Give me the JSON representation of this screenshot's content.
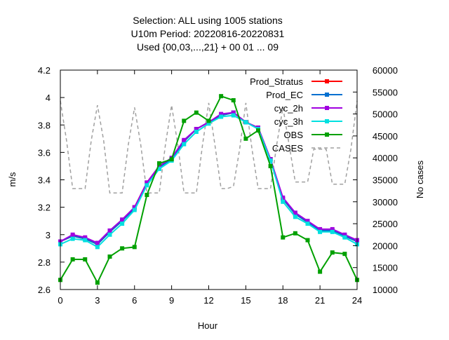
{
  "chart_data": {
    "type": "line",
    "title_lines": [
      "Selection: ALL using  1005 stations",
      "U10m   Period: 20220816-20220831",
      "Used {00,03,...,21} + 00 01 ... 09"
    ],
    "xlabel": "Hour",
    "ylabel": "m/s",
    "y2label": "No cases",
    "xlim": [
      0,
      24
    ],
    "ylim": [
      2.6,
      4.2
    ],
    "y2lim": [
      10000,
      60000
    ],
    "x_ticks": [
      0,
      3,
      6,
      9,
      12,
      15,
      18,
      21,
      24
    ],
    "y_ticks": [
      "2.6",
      "2.8",
      "3",
      "3.2",
      "3.4",
      "3.6",
      "3.8",
      "4",
      "4.2"
    ],
    "y_tick_values": [
      2.6,
      2.8,
      3.0,
      3.2,
      3.4,
      3.6,
      3.8,
      4.0,
      4.2
    ],
    "y2_ticks": [
      "10000",
      "15000",
      "20000",
      "25000",
      "30000",
      "35000",
      "40000",
      "45000",
      "50000",
      "55000",
      "60000"
    ],
    "y2_tick_values": [
      10000,
      15000,
      20000,
      25000,
      30000,
      35000,
      40000,
      45000,
      50000,
      55000,
      60000
    ],
    "grid": false,
    "legend_position": "top-right",
    "x": [
      0,
      1,
      2,
      3,
      4,
      5,
      6,
      7,
      8,
      9,
      10,
      11,
      12,
      13,
      14,
      15,
      16,
      17,
      18,
      19,
      20,
      21,
      22,
      23,
      24
    ],
    "series": [
      {
        "name": "Prod_Stratus",
        "color": "#ff0000",
        "axis": "y1",
        "values": [
          2.95,
          2.99,
          2.97,
          2.93,
          3.02,
          3.1,
          3.2,
          3.38,
          3.5,
          3.55,
          3.68,
          3.77,
          3.82,
          3.87,
          3.89,
          3.82,
          3.78,
          3.55,
          3.26,
          3.15,
          3.09,
          3.03,
          3.03,
          2.99,
          2.95
        ]
      },
      {
        "name": "Prod_EC",
        "color": "#0070d0",
        "axis": "y1",
        "values": [
          2.95,
          2.99,
          2.97,
          2.93,
          3.02,
          3.1,
          3.19,
          3.38,
          3.49,
          3.55,
          3.68,
          3.77,
          3.82,
          3.87,
          3.89,
          3.82,
          3.78,
          3.55,
          3.26,
          3.15,
          3.09,
          3.03,
          3.03,
          2.99,
          2.95
        ]
      },
      {
        "name": "cyc_2h",
        "color": "#a000e0",
        "axis": "y1",
        "values": [
          2.95,
          3.0,
          2.98,
          2.94,
          3.03,
          3.11,
          3.2,
          3.38,
          3.5,
          3.56,
          3.69,
          3.77,
          3.82,
          3.88,
          3.89,
          3.82,
          3.78,
          3.55,
          3.27,
          3.16,
          3.1,
          3.04,
          3.04,
          3.0,
          2.96
        ]
      },
      {
        "name": "cyc_3h",
        "color": "#00e0e0",
        "axis": "y1",
        "values": [
          2.93,
          2.97,
          2.96,
          2.91,
          3.0,
          3.08,
          3.18,
          3.36,
          3.48,
          3.54,
          3.66,
          3.75,
          3.81,
          3.86,
          3.87,
          3.82,
          3.77,
          3.54,
          3.24,
          3.13,
          3.08,
          3.02,
          3.02,
          2.98,
          2.93
        ]
      },
      {
        "name": "OBS",
        "color": "#00a000",
        "axis": "y1",
        "values": [
          2.67,
          2.82,
          2.82,
          2.65,
          2.84,
          2.9,
          2.91,
          3.29,
          3.52,
          3.55,
          3.83,
          3.89,
          3.83,
          4.01,
          3.98,
          3.7,
          3.76,
          3.5,
          2.98,
          3.01,
          2.96,
          2.73,
          2.87,
          2.86,
          2.67
        ]
      },
      {
        "name": "CASES",
        "color": "#a0a0a0",
        "axis": "y2",
        "x": [
          0,
          0.5,
          1,
          1.5,
          2,
          2.5,
          3,
          3.5,
          4,
          4.5,
          5,
          5.5,
          6,
          6.5,
          7,
          7.5,
          8,
          8.5,
          9,
          9.5,
          10,
          10.5,
          11,
          11.5,
          12,
          12.5,
          13,
          13.5,
          14,
          14.5,
          15,
          15.5,
          16,
          16.5,
          17,
          17.5,
          18,
          18.5,
          19,
          19.5,
          20,
          20.5,
          21,
          21.5,
          22,
          22.5,
          23,
          23.5,
          24
        ],
        "values": [
          53000,
          44000,
          33000,
          33000,
          33000,
          44000,
          52000,
          44000,
          32000,
          32000,
          32000,
          43000,
          51500,
          43000,
          32000,
          32000,
          32000,
          43000,
          52000,
          43000,
          32000,
          32000,
          32000,
          43000,
          52500,
          43000,
          33000,
          33000,
          33500,
          42000,
          52500,
          42000,
          33000,
          33000,
          33000,
          43000,
          51500,
          43000,
          34500,
          34500,
          34500,
          42000,
          42000,
          42000,
          34000,
          34000,
          34000,
          42000,
          53000
        ]
      }
    ]
  }
}
